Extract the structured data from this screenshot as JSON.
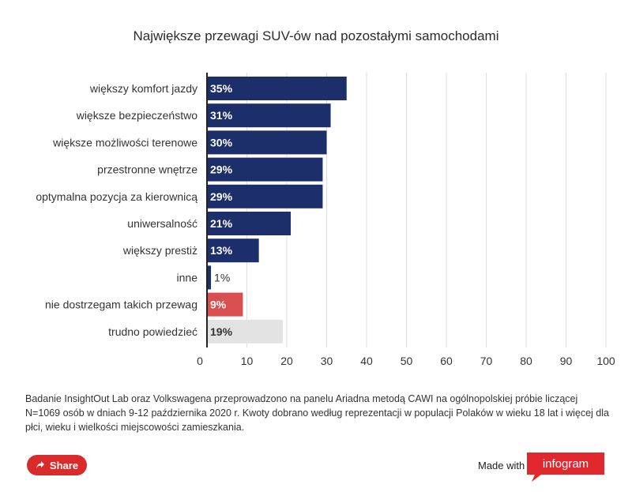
{
  "chart_data": {
    "type": "bar",
    "orientation": "horizontal",
    "title": "Największe przewagi SUV-ów nad pozostałymi samochodami",
    "categories": [
      "większy komfort jazdy",
      "większe bezpieczeństwo",
      "większe możliwości terenowe",
      "przestronne wnętrze",
      "optymalna pozycja za kierownicą",
      "uniwersalność",
      "większy prestiż",
      "inne",
      "nie dostrzegam takich przewag",
      "trudno powiedzieć"
    ],
    "values": [
      35,
      31,
      30,
      29,
      29,
      21,
      13,
      1,
      9,
      19
    ],
    "value_labels": [
      "35%",
      "31%",
      "30%",
      "29%",
      "29%",
      "21%",
      "13%",
      "1%",
      "9%",
      "19%"
    ],
    "bar_colors": [
      "#1c2f6b",
      "#1c2f6b",
      "#1c2f6b",
      "#1c2f6b",
      "#1c2f6b",
      "#1c2f6b",
      "#1c2f6b",
      "#1c2f6b",
      "#d94f4f",
      "#e3e3e3"
    ],
    "label_colors": [
      "#ffffff",
      "#ffffff",
      "#ffffff",
      "#ffffff",
      "#ffffff",
      "#ffffff",
      "#ffffff",
      "#333333",
      "#ffffff",
      "#333333"
    ],
    "xlim": [
      0,
      100
    ],
    "xticks": [
      0,
      10,
      20,
      30,
      40,
      50,
      60,
      70,
      80,
      90,
      100
    ],
    "grid": true,
    "xlabel": "",
    "ylabel": ""
  },
  "footnote": "Badanie InsightOut Lab oraz Volkswagena przeprowadzono na panelu Ariadna metodą CAWI na ogólnopolskiej próbie liczącej N=1069 osób w dniach 9-12 października 2020 r. Kwoty dobrano według reprezentacji w populacji Polaków w wieku 18 lat i więcej dla płci, wieku i wielkości miejscowości zamieszkania.",
  "share": {
    "label": "Share",
    "icon": "share-icon"
  },
  "branding": {
    "made_with": "Made with",
    "logo_text": "infogram",
    "logo_color": "#e0282e"
  }
}
